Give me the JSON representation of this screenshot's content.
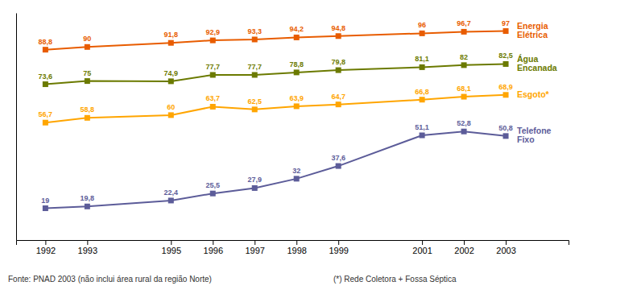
{
  "chart_data": {
    "type": "line",
    "x": [
      1992,
      1993,
      1995,
      1996,
      1997,
      1998,
      1999,
      2001,
      2002,
      2003
    ],
    "series": [
      {
        "name": "Energia\nElétrica",
        "color": "#E85C00",
        "values": [
          88.8,
          90.0,
          91.8,
          92.9,
          93.3,
          94.2,
          94.8,
          96.0,
          96.7,
          97.0
        ],
        "value_labels": [
          "88,8",
          "90",
          "91,8",
          "92,9",
          "93,3",
          "94,2",
          "94,8",
          "96",
          "96,7",
          "97"
        ]
      },
      {
        "name": "Água\nEncanada",
        "color": "#6B7A00",
        "values": [
          73.6,
          75.0,
          74.9,
          77.7,
          77.7,
          78.8,
          79.8,
          81.1,
          82.0,
          82.5
        ],
        "value_labels": [
          "73,6",
          "75",
          "74,9",
          "77,7",
          "77,7",
          "78,8",
          "79,8",
          "81,1",
          "82",
          "82,5"
        ]
      },
      {
        "name": "Esgoto*",
        "color": "#FFA500",
        "values": [
          56.7,
          58.8,
          60.0,
          63.7,
          62.5,
          63.9,
          64.7,
          66.8,
          68.1,
          68.9
        ],
        "value_labels": [
          "56,7",
          "58,8",
          "60",
          "63,7",
          "62,5",
          "63,9",
          "64,7",
          "66,8",
          "68,1",
          "68,9"
        ]
      },
      {
        "name": "Telefone\nFixo",
        "color": "#5C5C99",
        "values": [
          19.0,
          19.8,
          22.4,
          25.5,
          27.9,
          32.0,
          37.6,
          51.1,
          52.8,
          50.8
        ],
        "value_labels": [
          "19",
          "19,8",
          "22,4",
          "25,5",
          "27,9",
          "32",
          "37,6",
          "51,1",
          "52,8",
          "50,8"
        ]
      }
    ],
    "xlim": [
      1991.3,
      2004.5
    ],
    "xticks": [
      1992,
      1993,
      1995,
      1996,
      1997,
      1998,
      1999,
      2001,
      2002,
      2003
    ],
    "ylim": [
      5,
      105
    ],
    "tick_labels": "x",
    "grid": false,
    "marker": "square",
    "data_labels": true,
    "annotations": [
      "Fonte: PNAD 2003 (não inclui área rural da região Norte)",
      "(*) Rede Coletora + Fossa Séptica"
    ]
  }
}
